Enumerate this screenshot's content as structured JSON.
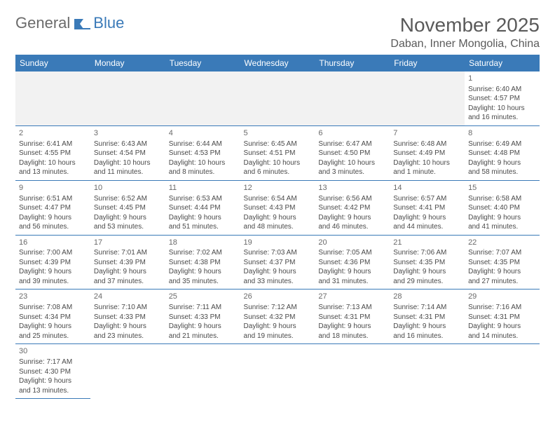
{
  "logo": {
    "text1": "General",
    "text2": "Blue"
  },
  "title": "November 2025",
  "location": "Daban, Inner Mongolia, China",
  "colors": {
    "header_bg": "#3a7ab8",
    "header_fg": "#ffffff",
    "border": "#3a7ab8",
    "text": "#4a4a4a",
    "title_text": "#5a5a5a",
    "empty_bg": "#f2f2f2"
  },
  "weekdays": [
    "Sunday",
    "Monday",
    "Tuesday",
    "Wednesday",
    "Thursday",
    "Friday",
    "Saturday"
  ],
  "weeks": [
    [
      null,
      null,
      null,
      null,
      null,
      null,
      {
        "n": "1",
        "sr": "6:40 AM",
        "ss": "4:57 PM",
        "d1": "10 hours",
        "d2": "and 16 minutes."
      }
    ],
    [
      {
        "n": "2",
        "sr": "6:41 AM",
        "ss": "4:55 PM",
        "d1": "10 hours",
        "d2": "and 13 minutes."
      },
      {
        "n": "3",
        "sr": "6:43 AM",
        "ss": "4:54 PM",
        "d1": "10 hours",
        "d2": "and 11 minutes."
      },
      {
        "n": "4",
        "sr": "6:44 AM",
        "ss": "4:53 PM",
        "d1": "10 hours",
        "d2": "and 8 minutes."
      },
      {
        "n": "5",
        "sr": "6:45 AM",
        "ss": "4:51 PM",
        "d1": "10 hours",
        "d2": "and 6 minutes."
      },
      {
        "n": "6",
        "sr": "6:47 AM",
        "ss": "4:50 PM",
        "d1": "10 hours",
        "d2": "and 3 minutes."
      },
      {
        "n": "7",
        "sr": "6:48 AM",
        "ss": "4:49 PM",
        "d1": "10 hours",
        "d2": "and 1 minute."
      },
      {
        "n": "8",
        "sr": "6:49 AM",
        "ss": "4:48 PM",
        "d1": "9 hours",
        "d2": "and 58 minutes."
      }
    ],
    [
      {
        "n": "9",
        "sr": "6:51 AM",
        "ss": "4:47 PM",
        "d1": "9 hours",
        "d2": "and 56 minutes."
      },
      {
        "n": "10",
        "sr": "6:52 AM",
        "ss": "4:45 PM",
        "d1": "9 hours",
        "d2": "and 53 minutes."
      },
      {
        "n": "11",
        "sr": "6:53 AM",
        "ss": "4:44 PM",
        "d1": "9 hours",
        "d2": "and 51 minutes."
      },
      {
        "n": "12",
        "sr": "6:54 AM",
        "ss": "4:43 PM",
        "d1": "9 hours",
        "d2": "and 48 minutes."
      },
      {
        "n": "13",
        "sr": "6:56 AM",
        "ss": "4:42 PM",
        "d1": "9 hours",
        "d2": "and 46 minutes."
      },
      {
        "n": "14",
        "sr": "6:57 AM",
        "ss": "4:41 PM",
        "d1": "9 hours",
        "d2": "and 44 minutes."
      },
      {
        "n": "15",
        "sr": "6:58 AM",
        "ss": "4:40 PM",
        "d1": "9 hours",
        "d2": "and 41 minutes."
      }
    ],
    [
      {
        "n": "16",
        "sr": "7:00 AM",
        "ss": "4:39 PM",
        "d1": "9 hours",
        "d2": "and 39 minutes."
      },
      {
        "n": "17",
        "sr": "7:01 AM",
        "ss": "4:39 PM",
        "d1": "9 hours",
        "d2": "and 37 minutes."
      },
      {
        "n": "18",
        "sr": "7:02 AM",
        "ss": "4:38 PM",
        "d1": "9 hours",
        "d2": "and 35 minutes."
      },
      {
        "n": "19",
        "sr": "7:03 AM",
        "ss": "4:37 PM",
        "d1": "9 hours",
        "d2": "and 33 minutes."
      },
      {
        "n": "20",
        "sr": "7:05 AM",
        "ss": "4:36 PM",
        "d1": "9 hours",
        "d2": "and 31 minutes."
      },
      {
        "n": "21",
        "sr": "7:06 AM",
        "ss": "4:35 PM",
        "d1": "9 hours",
        "d2": "and 29 minutes."
      },
      {
        "n": "22",
        "sr": "7:07 AM",
        "ss": "4:35 PM",
        "d1": "9 hours",
        "d2": "and 27 minutes."
      }
    ],
    [
      {
        "n": "23",
        "sr": "7:08 AM",
        "ss": "4:34 PM",
        "d1": "9 hours",
        "d2": "and 25 minutes."
      },
      {
        "n": "24",
        "sr": "7:10 AM",
        "ss": "4:33 PM",
        "d1": "9 hours",
        "d2": "and 23 minutes."
      },
      {
        "n": "25",
        "sr": "7:11 AM",
        "ss": "4:33 PM",
        "d1": "9 hours",
        "d2": "and 21 minutes."
      },
      {
        "n": "26",
        "sr": "7:12 AM",
        "ss": "4:32 PM",
        "d1": "9 hours",
        "d2": "and 19 minutes."
      },
      {
        "n": "27",
        "sr": "7:13 AM",
        "ss": "4:31 PM",
        "d1": "9 hours",
        "d2": "and 18 minutes."
      },
      {
        "n": "28",
        "sr": "7:14 AM",
        "ss": "4:31 PM",
        "d1": "9 hours",
        "d2": "and 16 minutes."
      },
      {
        "n": "29",
        "sr": "7:16 AM",
        "ss": "4:31 PM",
        "d1": "9 hours",
        "d2": "and 14 minutes."
      }
    ],
    [
      {
        "n": "30",
        "sr": "7:17 AM",
        "ss": "4:30 PM",
        "d1": "9 hours",
        "d2": "and 13 minutes."
      },
      null,
      null,
      null,
      null,
      null,
      null
    ]
  ],
  "labels": {
    "sunrise": "Sunrise:",
    "sunset": "Sunset:",
    "daylight": "Daylight:"
  }
}
